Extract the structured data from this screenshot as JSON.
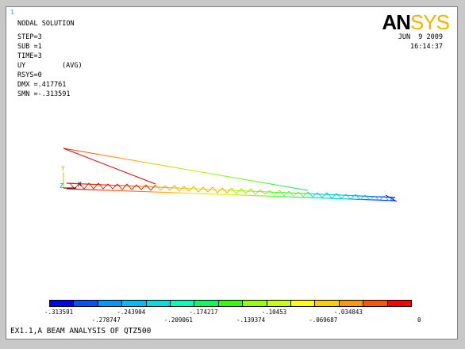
{
  "window_number": "1",
  "header": {
    "solution_type": "NODAL SOLUTION",
    "step": "STEP=3",
    "sub": "SUB =1",
    "time": "TIME=3",
    "item": "UY",
    "avg": "(AVG)",
    "rsys": "RSYS=0",
    "dmx": "DMX =.417761",
    "smn": "SMN =-.313591"
  },
  "logo": {
    "an": "AN",
    "sys": "SYS"
  },
  "date": "JUN  9 2009",
  "time_of_day": "16:14:37",
  "triad": {
    "y_label": "Y",
    "z_label": "Z",
    "x_label": "X"
  },
  "legend": {
    "colors": [
      "#0000ff",
      "#0055ff",
      "#0099ff",
      "#00bbff",
      "#00dddd",
      "#00ffbb",
      "#00ff66",
      "#33ff00",
      "#99ff00",
      "#ccff00",
      "#ffff00",
      "#ffcc00",
      "#ff9900",
      "#ff5500",
      "#ff0000"
    ],
    "top_labels": [
      "-.313591",
      "-.243904",
      "-.174217",
      "-.10453",
      "-.034843"
    ],
    "bottom_labels": [
      "-.278747",
      "-.209061",
      "-.139374",
      "-.069687",
      "0"
    ]
  },
  "title": "EX1.1,A BEAM ANALYSIS OF QTZ500",
  "colors": {
    "background": "#ffffff",
    "max_color": "#ff0000",
    "min_color": "#0000ff"
  }
}
